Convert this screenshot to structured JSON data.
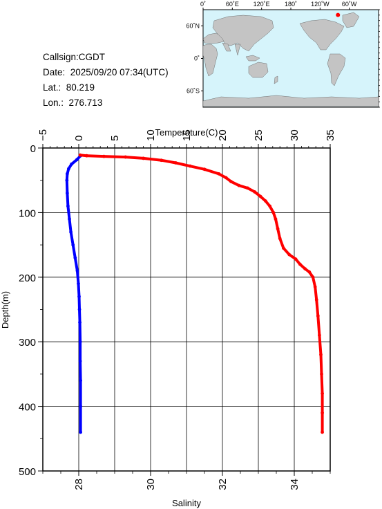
{
  "station": {
    "callsign_label": "Callsign:CGDT",
    "date_label": "Date:  2025/09/20 07:34(UTC)",
    "lat_label": "Lat.:  80.219",
    "lon_label": "Lon.:  276.713"
  },
  "map": {
    "lon_ticks": [
      "0˚",
      "60˚E",
      "120˚E",
      "180˚",
      "120˚W",
      "60˚W"
    ],
    "lat_ticks": [
      "60˚N",
      "0˚",
      "60˚S"
    ],
    "station_lon": 276.713,
    "station_lat": 80.219,
    "ocean_color": "#d6f4fb",
    "land_color": "#c4c4c4",
    "marker_color": "#ff0000"
  },
  "chart_data": {
    "type": "line",
    "title": "",
    "x_top_label": "Temperature(C)",
    "x_bottom_label": "Salinity",
    "ylabel": "Depth(m)",
    "temp_range": [
      -5,
      35
    ],
    "temp_ticks": [
      "−5",
      "0",
      "5",
      "10",
      "15",
      "20",
      "25",
      "30",
      "35"
    ],
    "sal_range": [
      27,
      35
    ],
    "sal_ticks": [
      "28",
      "30",
      "32",
      "34"
    ],
    "depth_range": [
      0,
      500
    ],
    "depth_ticks": [
      "0",
      "100",
      "200",
      "300",
      "400",
      "500"
    ],
    "grid": true,
    "series": [
      {
        "axis": "bottom",
        "color": "#0000ff",
        "points": [
          [
            28.05,
            12
          ],
          [
            27.95,
            18
          ],
          [
            27.8,
            25
          ],
          [
            27.72,
            32
          ],
          [
            27.68,
            40
          ],
          [
            27.67,
            50
          ],
          [
            27.68,
            70
          ],
          [
            27.7,
            90
          ],
          [
            27.74,
            110
          ],
          [
            27.78,
            130
          ],
          [
            27.84,
            150
          ],
          [
            27.9,
            170
          ],
          [
            27.96,
            190
          ],
          [
            27.99,
            210
          ],
          [
            28.01,
            230
          ],
          [
            28.02,
            250
          ],
          [
            28.03,
            270
          ],
          [
            28.04,
            300
          ],
          [
            28.04,
            330
          ],
          [
            28.05,
            360
          ],
          [
            28.05,
            400
          ],
          [
            28.05,
            440
          ]
        ]
      },
      {
        "axis": "top",
        "color": "#ff0000",
        "points": [
          [
            0.2,
            11
          ],
          [
            1.1,
            12
          ],
          [
            3.5,
            13
          ],
          [
            6.5,
            14
          ],
          [
            9,
            16
          ],
          [
            11.5,
            19
          ],
          [
            13.5,
            23
          ],
          [
            15.5,
            28
          ],
          [
            17.5,
            33
          ],
          [
            19.5,
            40
          ],
          [
            20.5,
            46
          ],
          [
            21.2,
            52
          ],
          [
            22.3,
            58
          ],
          [
            23.5,
            62
          ],
          [
            24.5,
            68
          ],
          [
            25.3,
            75
          ],
          [
            26,
            82
          ],
          [
            26.6,
            90
          ],
          [
            27.1,
            100
          ],
          [
            27.4,
            110
          ],
          [
            27.7,
            125
          ],
          [
            28,
            140
          ],
          [
            28.5,
            155
          ],
          [
            29.3,
            165
          ],
          [
            30.2,
            172
          ],
          [
            30.8,
            180
          ],
          [
            31.5,
            187
          ],
          [
            32.1,
            192
          ],
          [
            32.6,
            200
          ],
          [
            32.9,
            215
          ],
          [
            33.1,
            235
          ],
          [
            33.3,
            260
          ],
          [
            33.5,
            290
          ],
          [
            33.7,
            320
          ],
          [
            33.8,
            350
          ],
          [
            33.9,
            380
          ],
          [
            33.9,
            410
          ],
          [
            33.9,
            440
          ]
        ]
      }
    ]
  }
}
